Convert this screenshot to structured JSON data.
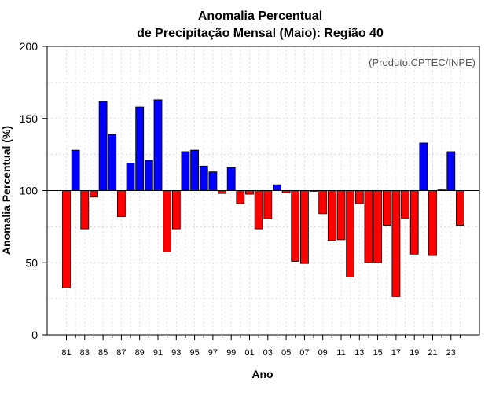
{
  "chart_data": {
    "type": "bar",
    "title_line1": "Anomalia Percentual",
    "title_line2": "de Precipitação Mensal (Maio): Região 40",
    "credit": "(Produto:CPTEC/INPE)",
    "xlabel": "Ano",
    "ylabel": "Anomalia Percentual (%)",
    "ylim": [
      0,
      200
    ],
    "yticks": [
      0,
      50,
      100,
      150,
      200
    ],
    "baseline": 100,
    "grid": true,
    "colors": {
      "above": "#0000ff",
      "below": "#ff0000"
    },
    "x_tick_labels": [
      "81",
      "83",
      "85",
      "87",
      "89",
      "91",
      "93",
      "95",
      "97",
      "99",
      "01",
      "03",
      "05",
      "07",
      "09",
      "11",
      "13",
      "15",
      "17",
      "19",
      "21",
      "23"
    ],
    "categories": [
      "1981",
      "1982",
      "1983",
      "1984",
      "1985",
      "1986",
      "1987",
      "1988",
      "1989",
      "1990",
      "1991",
      "1992",
      "1993",
      "1994",
      "1995",
      "1996",
      "1997",
      "1998",
      "1999",
      "2000",
      "2001",
      "2002",
      "2003",
      "2004",
      "2005",
      "2006",
      "2007",
      "2008",
      "2009",
      "2010",
      "2011",
      "2012",
      "2013",
      "2014",
      "2015",
      "2016",
      "2017",
      "2018",
      "2019",
      "2020",
      "2021",
      "2022",
      "2023",
      "2024"
    ],
    "values": [
      32.5,
      128,
      73.5,
      95.5,
      162,
      139,
      82,
      119,
      158,
      121,
      163,
      57.5,
      73.5,
      127,
      128,
      117,
      113,
      98,
      116,
      91,
      97.5,
      73.5,
      80.5,
      104,
      98.5,
      51,
      49.5,
      99.5,
      84,
      65.5,
      66,
      40,
      91,
      50,
      50,
      76,
      26.5,
      81,
      56,
      133,
      55,
      100.5,
      127,
      76
    ]
  }
}
